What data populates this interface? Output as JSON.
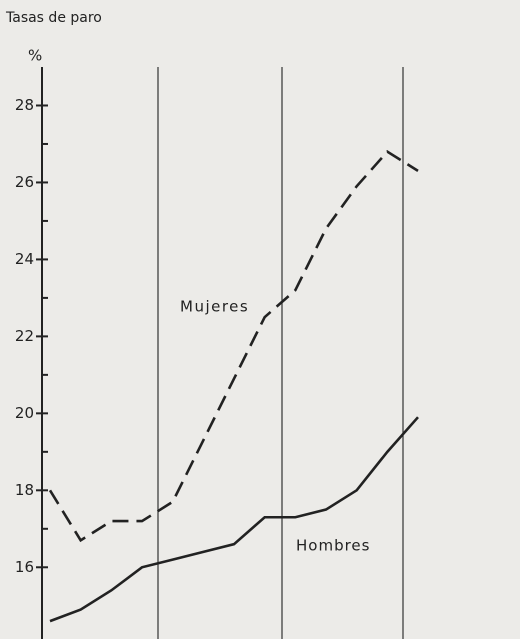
{
  "chart_data": {
    "type": "line",
    "title": "Tasas de paro",
    "y_label": "%",
    "categories": [
      null,
      null,
      null,
      null,
      null,
      null,
      null,
      null,
      null,
      null,
      null,
      null,
      null
    ],
    "series": [
      {
        "name": "Mujeres",
        "color": "#222222",
        "dashed": true,
        "values": [
          18.0,
          16.7,
          17.2,
          17.2,
          17.7,
          19.3,
          20.9,
          22.5,
          23.2,
          24.8,
          25.9,
          26.8,
          26.3
        ]
      },
      {
        "name": "Hombres",
        "color": "#222222",
        "dashed": false,
        "values": [
          14.6,
          14.9,
          15.4,
          16.0,
          16.2,
          16.4,
          16.6,
          17.3,
          17.3,
          17.5,
          18.0,
          19.0,
          19.9
        ]
      }
    ],
    "ylim": [
      14.5,
      29
    ],
    "yticks": [
      16,
      18,
      20,
      22,
      24,
      26,
      28
    ]
  }
}
